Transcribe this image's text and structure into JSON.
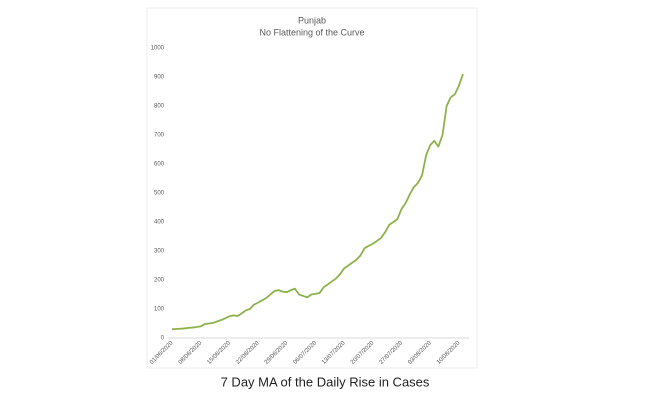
{
  "chart_data": {
    "type": "line",
    "title": "Punjab",
    "subtitle": "No Flattening of the Curve",
    "categories": [
      "01/06/2020",
      null,
      null,
      null,
      null,
      null,
      null,
      "08/06/2020",
      null,
      null,
      null,
      null,
      null,
      null,
      "15/06/2020",
      null,
      null,
      null,
      null,
      null,
      null,
      "22/06/2020",
      null,
      null,
      null,
      null,
      null,
      null,
      "29/06/2020",
      null,
      null,
      null,
      null,
      null,
      null,
      "06/07/2020",
      null,
      null,
      null,
      null,
      null,
      null,
      "13/07/2020",
      null,
      null,
      null,
      null,
      null,
      null,
      "20/07/2020",
      null,
      null,
      null,
      null,
      null,
      null,
      "27/07/2020",
      null,
      null,
      null,
      null,
      null,
      null,
      "03/08/2020",
      null,
      null,
      null,
      null,
      null,
      null,
      "10/08/2020",
      null
    ],
    "values": [
      30,
      31,
      32,
      33,
      35,
      36,
      38,
      40,
      48,
      50,
      52,
      57,
      62,
      68,
      75,
      78,
      76,
      85,
      95,
      100,
      115,
      122,
      130,
      138,
      150,
      162,
      165,
      160,
      158,
      165,
      170,
      150,
      145,
      140,
      150,
      152,
      155,
      175,
      185,
      195,
      205,
      220,
      240,
      250,
      260,
      270,
      285,
      310,
      318,
      325,
      335,
      345,
      365,
      390,
      400,
      410,
      445,
      465,
      495,
      520,
      535,
      560,
      630,
      665,
      680,
      660,
      700,
      800,
      830,
      840,
      870,
      910
    ],
    "color": "#8cb34a",
    "ylim": [
      0,
      1000
    ],
    "yticks": [
      0,
      100,
      200,
      300,
      400,
      500,
      600,
      700,
      800,
      900,
      1000
    ],
    "grid": false
  },
  "caption": "7 Day MA of the Daily Rise in Cases"
}
